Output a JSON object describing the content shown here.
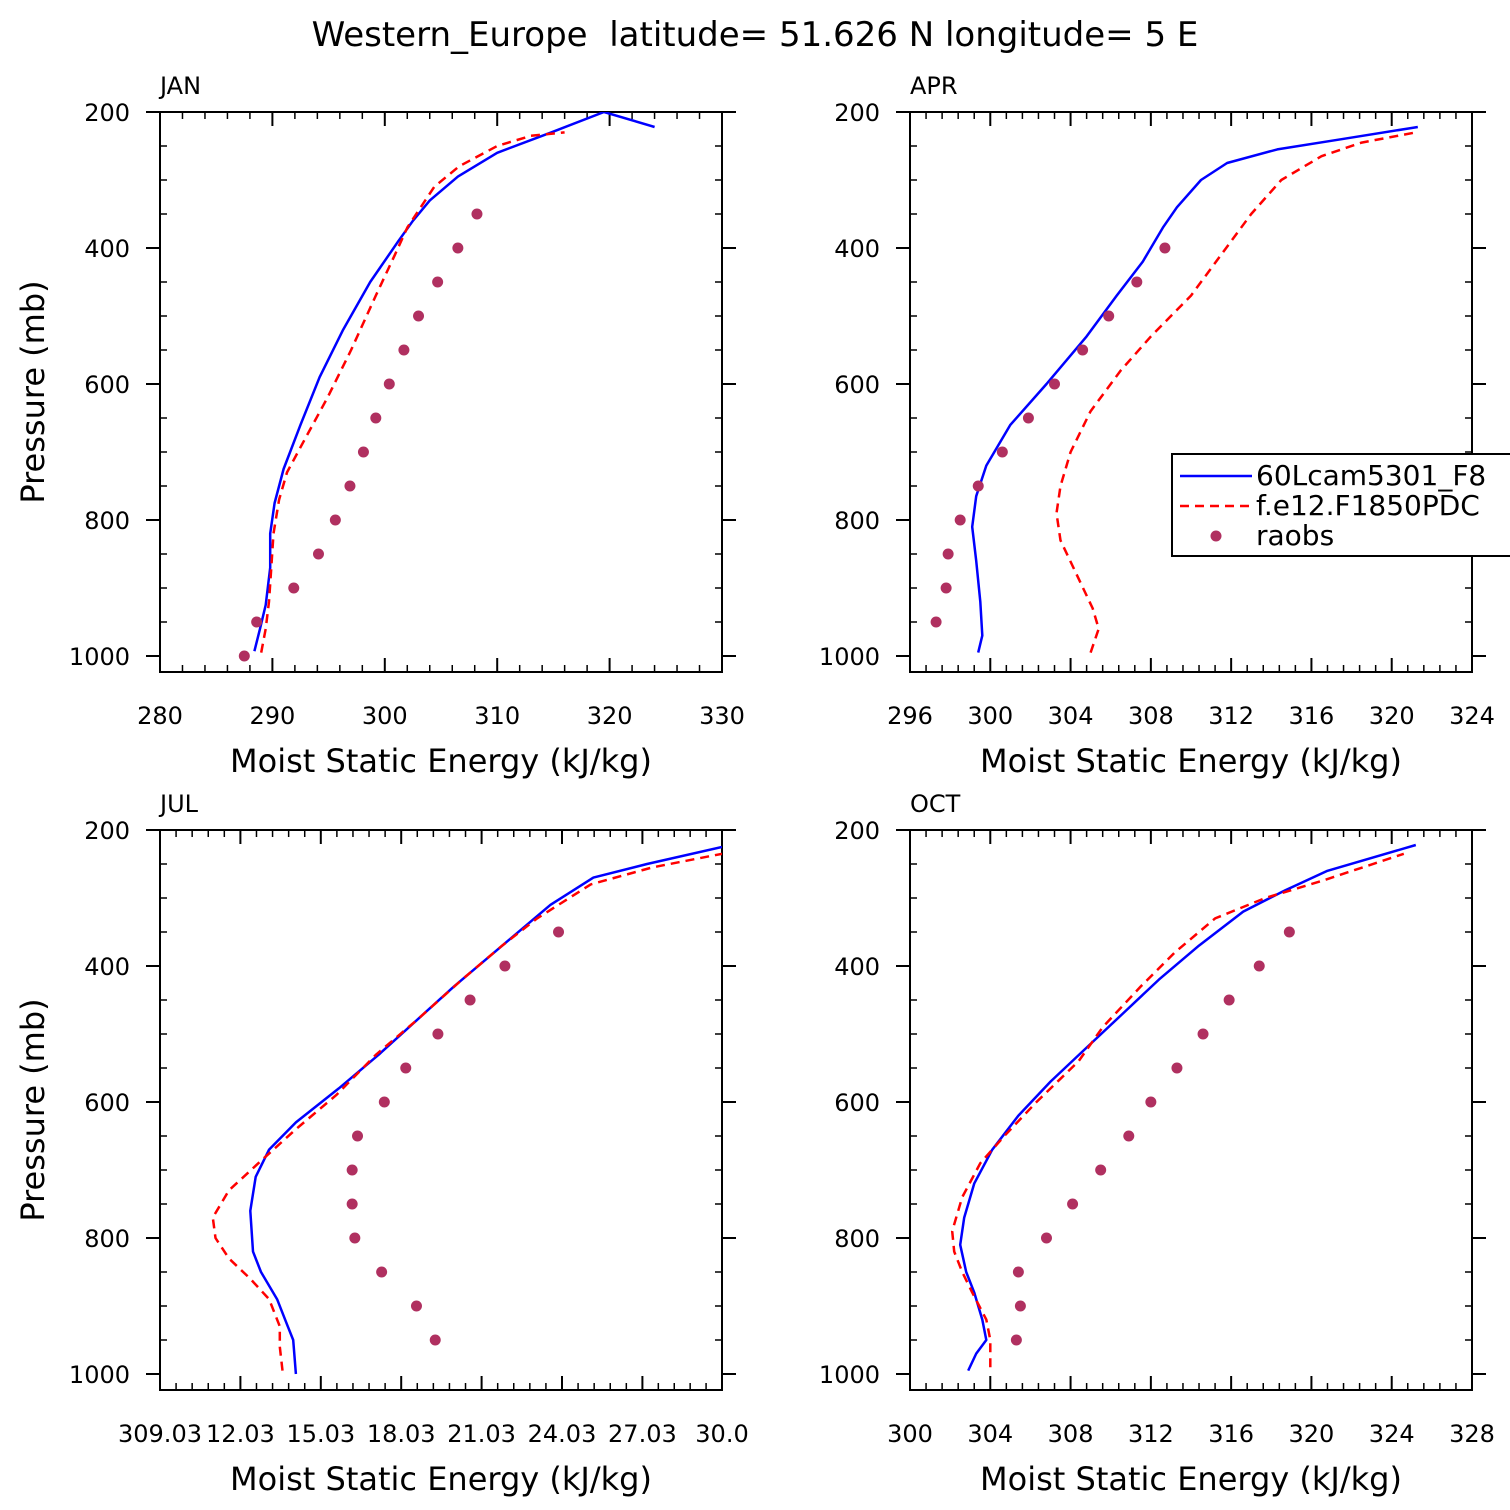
{
  "title": "Western_Europe  latitude= 51.626 N longitude= 5 E",
  "colors": {
    "model1": "#0000ff",
    "model2": "#ff0000",
    "raobs": "#b03060",
    "axis": "#000000"
  },
  "legend": {
    "location": "APR panel, right side",
    "entries": [
      {
        "label": "60Lcam5301_F8",
        "style": "solid",
        "color": "#0000ff"
      },
      {
        "label": "f.e12.F1850PDC",
        "style": "dashed",
        "color": "#ff0000"
      },
      {
        "label": "raobs",
        "style": "marker",
        "color": "#b03060"
      }
    ]
  },
  "chart_data": [
    {
      "type": "line",
      "panel": "JAN",
      "xlabel": "Moist Static Energy (kJ/kg)",
      "ylabel": "Pressure (mb)",
      "xlim": [
        280,
        330
      ],
      "ylim": [
        1000,
        200
      ],
      "x_ticks": [
        280,
        290,
        300,
        310,
        320,
        330
      ],
      "x_tick_labels": [
        "280",
        "290",
        "300",
        "310",
        "320",
        "330"
      ],
      "y_ticks": [
        200,
        400,
        600,
        800,
        1000
      ],
      "y_tick_labels": [
        "200",
        "400",
        "600",
        "800",
        "1000"
      ],
      "series": [
        {
          "name": "60Lcam5301_F8",
          "x": [
            288.4,
            288.9,
            289.4,
            289.8,
            289.8,
            290.2,
            291.0,
            292.5,
            294.2,
            296.3,
            298.7,
            301.2,
            302.5,
            304.0,
            306.5,
            310.0,
            314.8,
            319.5,
            324.0
          ],
          "y": [
            993,
            960,
            925,
            870,
            820,
            775,
            725,
            660,
            590,
            520,
            450,
            390,
            360,
            330,
            295,
            260,
            230,
            200,
            222
          ]
        },
        {
          "name": "f.e12.F1850PDC",
          "x": [
            289.0,
            289.4,
            289.7,
            289.9,
            290.1,
            290.6,
            291.3,
            292.6,
            294.9,
            297.0,
            299.2,
            300.9,
            302.0,
            304.4,
            306.6,
            310.0,
            313.0,
            316.0
          ],
          "y": [
            995,
            960,
            920,
            870,
            820,
            770,
            730,
            690,
            620,
            550,
            470,
            410,
            370,
            310,
            280,
            250,
            235,
            230
          ]
        },
        {
          "name": "raobs",
          "x": [
            287.5,
            288.6,
            291.9,
            294.1,
            295.6,
            296.9,
            298.1,
            299.2,
            300.4,
            301.7,
            303.0,
            304.7,
            306.5,
            308.2
          ],
          "y": [
            1000,
            950,
            900,
            850,
            800,
            750,
            700,
            650,
            600,
            550,
            500,
            450,
            400,
            350
          ]
        }
      ]
    },
    {
      "type": "line",
      "panel": "APR",
      "xlabel": "Moist Static Energy (kJ/kg)",
      "ylabel": "",
      "xlim": [
        296,
        324
      ],
      "ylim": [
        1000,
        200
      ],
      "x_ticks": [
        296,
        300,
        304,
        308,
        312,
        316,
        320,
        324
      ],
      "x_tick_labels": [
        "296",
        "300",
        "304",
        "308",
        "312",
        "316",
        "320",
        "324"
      ],
      "y_ticks": [
        200,
        400,
        600,
        800,
        1000
      ],
      "y_tick_labels": [
        "200",
        "400",
        "600",
        "800",
        "1000"
      ],
      "series": [
        {
          "name": "60Lcam5301_F8",
          "x": [
            299.4,
            299.6,
            299.5,
            299.3,
            299.1,
            299.3,
            299.8,
            301.0,
            302.8,
            304.8,
            306.3,
            307.6,
            308.6,
            309.3,
            310.5,
            311.8,
            314.3,
            317.5,
            321.3
          ],
          "y": [
            995,
            970,
            920,
            860,
            810,
            765,
            720,
            660,
            600,
            530,
            470,
            420,
            370,
            340,
            300,
            275,
            255,
            240,
            222
          ]
        },
        {
          "name": "f.e12.F1850PDC",
          "x": [
            305.0,
            305.4,
            305.1,
            304.3,
            303.5,
            303.3,
            303.5,
            304.0,
            305.0,
            306.5,
            308.0,
            310.0,
            311.5,
            313.0,
            314.5,
            316.5,
            318.5,
            321.2
          ],
          "y": [
            995,
            960,
            930,
            880,
            830,
            790,
            750,
            700,
            640,
            580,
            530,
            470,
            410,
            350,
            300,
            265,
            245,
            230
          ]
        },
        {
          "name": "raobs",
          "x": [
            297.3,
            297.8,
            297.9,
            298.5,
            299.4,
            300.6,
            301.9,
            303.2,
            304.6,
            305.9,
            307.3,
            308.7
          ],
          "y": [
            950,
            900,
            850,
            800,
            750,
            700,
            650,
            600,
            550,
            500,
            450,
            400
          ]
        }
      ]
    },
    {
      "type": "line",
      "panel": "JUL",
      "xlabel": "Moist Static Energy (kJ/kg)",
      "ylabel": "Pressure (mb)",
      "xlim": [
        309.03,
        330.0
      ],
      "ylim": [
        1000,
        200
      ],
      "x_ticks": [
        309.03,
        312.03,
        315.03,
        318.03,
        321.03,
        324.03,
        327.03,
        330.0
      ],
      "x_tick_labels": [
        "309.03",
        "12.03",
        "15.03",
        "18.03",
        "21.03",
        "24.03",
        "27.03",
        "30.0"
      ],
      "y_ticks": [
        200,
        400,
        600,
        800,
        1000
      ],
      "y_tick_labels": [
        "200",
        "400",
        "600",
        "800",
        "1000"
      ],
      "series": [
        {
          "name": "60Lcam5301_F8",
          "x": [
            314.1,
            314.0,
            313.8,
            313.4,
            312.8,
            312.5,
            312.4,
            312.6,
            313.1,
            314.1,
            315.7,
            317.2,
            318.6,
            320.0,
            321.5,
            322.7,
            323.6,
            325.2,
            327.2,
            330.0
          ],
          "y": [
            1000,
            950,
            930,
            890,
            850,
            820,
            760,
            710,
            670,
            630,
            580,
            530,
            480,
            430,
            380,
            340,
            310,
            270,
            250,
            225
          ]
        },
        {
          "name": "f.e12.F1850PDC",
          "x": [
            313.6,
            313.5,
            313.5,
            313.1,
            312.4,
            311.6,
            311.1,
            311.0,
            311.6,
            312.7,
            314.1,
            315.6,
            317.1,
            318.6,
            320.3,
            321.8,
            323.1,
            325.1,
            327.4,
            330.0
          ],
          "y": [
            995,
            960,
            930,
            890,
            860,
            830,
            800,
            770,
            730,
            690,
            640,
            590,
            530,
            480,
            420,
            370,
            330,
            280,
            255,
            235
          ]
        },
        {
          "name": "raobs",
          "x": [
            319.3,
            318.6,
            317.3,
            316.3,
            316.2,
            316.2,
            316.4,
            317.4,
            318.2,
            319.4,
            320.6,
            321.9,
            323.9
          ],
          "y": [
            950,
            900,
            850,
            800,
            750,
            700,
            650,
            600,
            550,
            500,
            450,
            400,
            350
          ]
        }
      ]
    },
    {
      "type": "line",
      "panel": "OCT",
      "xlabel": "Moist Static Energy (kJ/kg)",
      "ylabel": "",
      "xlim": [
        300,
        328
      ],
      "ylim": [
        1000,
        200
      ],
      "x_ticks": [
        300,
        304,
        308,
        312,
        316,
        320,
        324,
        328
      ],
      "x_tick_labels": [
        "300",
        "304",
        "308",
        "312",
        "316",
        "320",
        "324",
        "328"
      ],
      "y_ticks": [
        200,
        400,
        600,
        800,
        1000
      ],
      "y_tick_labels": [
        "200",
        "400",
        "600",
        "800",
        "1000"
      ],
      "series": [
        {
          "name": "60Lcam5301_F8",
          "x": [
            302.9,
            303.3,
            303.8,
            303.6,
            303.2,
            302.8,
            302.5,
            302.7,
            303.2,
            304.1,
            305.4,
            307.0,
            308.8,
            310.6,
            312.4,
            314.4,
            316.6,
            318.6,
            320.8,
            325.2
          ],
          "y": [
            995,
            970,
            950,
            920,
            880,
            850,
            810,
            770,
            720,
            670,
            620,
            570,
            520,
            470,
            420,
            370,
            320,
            290,
            260,
            222
          ]
        },
        {
          "name": "f.e12.F1850PDC",
          "x": [
            304.0,
            304.0,
            303.8,
            303.1,
            302.6,
            302.2,
            302.1,
            302.6,
            303.5,
            304.7,
            306.3,
            308.4,
            309.6,
            311.5,
            313.2,
            315.2,
            317.7,
            320.5,
            324.6
          ],
          "y": [
            990,
            950,
            920,
            880,
            850,
            820,
            790,
            740,
            690,
            650,
            600,
            540,
            490,
            430,
            380,
            330,
            300,
            275,
            235
          ]
        },
        {
          "name": "raobs",
          "x": [
            305.3,
            305.5,
            305.4,
            306.8,
            308.1,
            309.5,
            310.9,
            312.0,
            313.3,
            314.6,
            315.9,
            317.4,
            318.9
          ],
          "y": [
            950,
            900,
            850,
            800,
            750,
            700,
            650,
            600,
            550,
            500,
            450,
            400,
            350
          ]
        }
      ]
    }
  ]
}
